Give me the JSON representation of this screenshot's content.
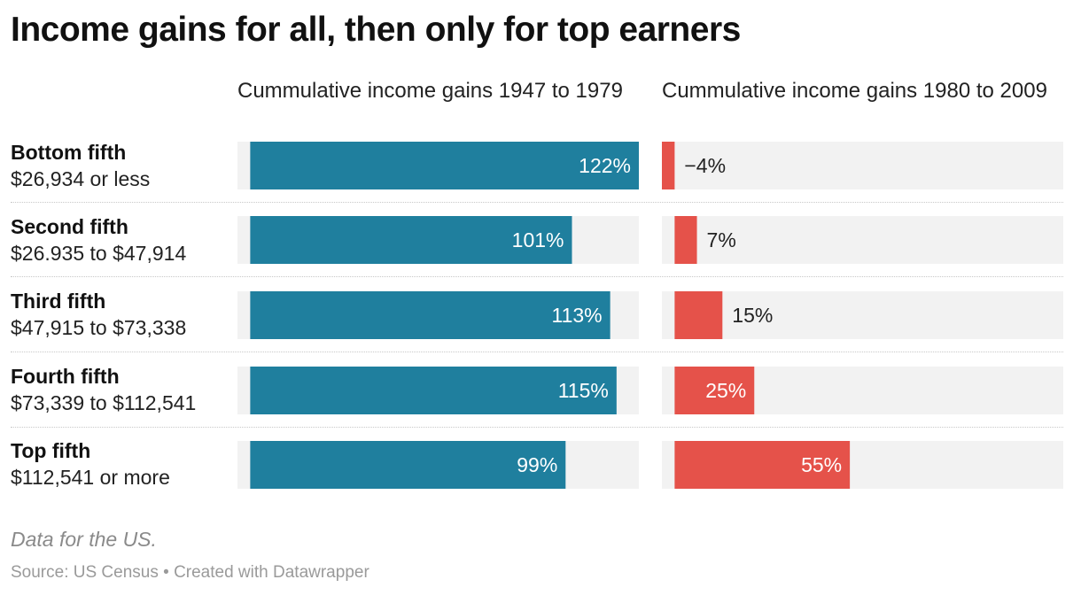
{
  "title": "Income gains for all, then only for top earners",
  "note": "Data for the US.",
  "source": "Source: US Census • Created with Datawrapper",
  "colors": {
    "panel1": "#1f7f9e",
    "panel2": "#e5524a",
    "track": "#f2f2f2",
    "label_inside": "#ffffff",
    "label_outside": "#222222"
  },
  "chart_data": {
    "type": "bar",
    "orientation": "horizontal",
    "categories": [
      {
        "name": "Bottom fifth",
        "range": "$26,934 or less"
      },
      {
        "name": "Second fifth",
        "range": "$26.935 to $47,914"
      },
      {
        "name": "Third fifth",
        "range": "$47,915 to $73,338"
      },
      {
        "name": "Fourth fifth",
        "range": "$73,339 to $112,541"
      },
      {
        "name": "Top fifth",
        "range": "$112,541 or more"
      }
    ],
    "panels": [
      {
        "title": "Cummulative income gains 1947 to 1979",
        "values": [
          122,
          101,
          113,
          115,
          99
        ],
        "labels": [
          "122%",
          "101%",
          "113%",
          "115%",
          "99%"
        ],
        "xlim": [
          -4,
          122
        ]
      },
      {
        "title": "Cummulative income gains 1980 to 2009",
        "values": [
          -4,
          7,
          15,
          25,
          55
        ],
        "labels": [
          "−4%",
          "7%",
          "15%",
          "25%",
          "55%"
        ],
        "xlim": [
          -4,
          122
        ]
      }
    ]
  }
}
